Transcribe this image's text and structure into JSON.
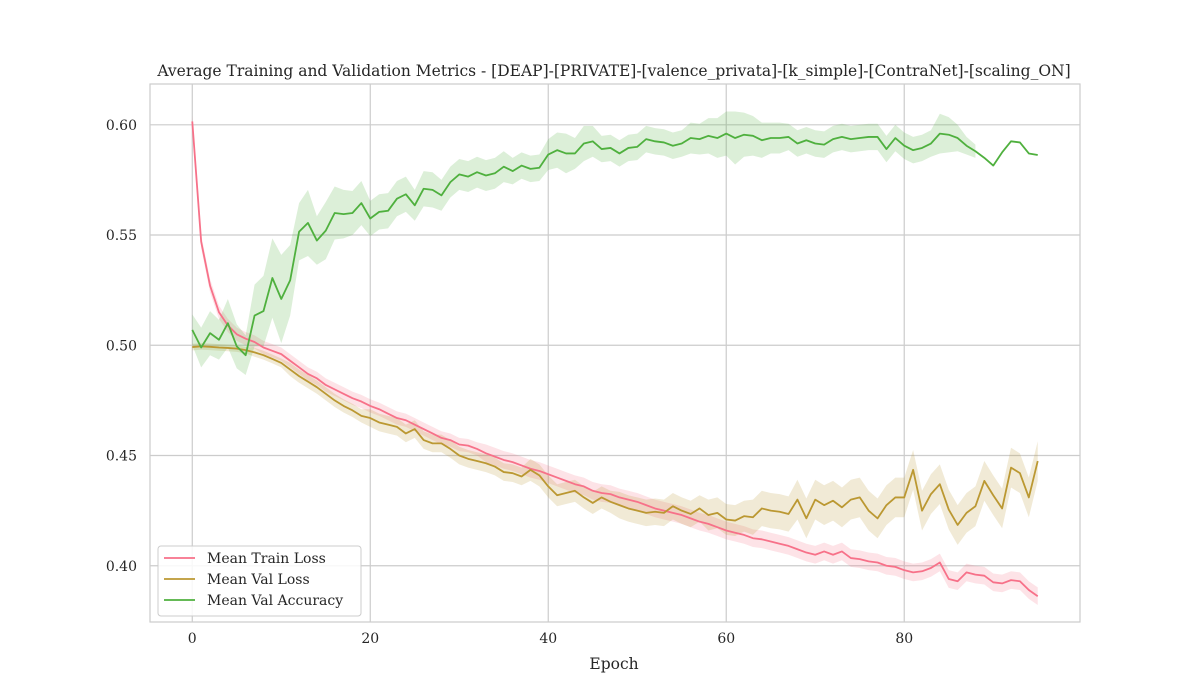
{
  "chart_data": {
    "type": "line",
    "title": "Average Training and Validation Metrics - [DEAP]-[PRIVATE]-[valence_privata]-[k_simple]-[ContraNet]-[scaling_ON]",
    "xlabel": "Epoch",
    "ylabel": "",
    "xlim": [
      -4.75,
      99.75
    ],
    "ylim": [
      0.3745,
      0.6185
    ],
    "xticks": [
      0,
      20,
      40,
      60,
      80
    ],
    "yticks": [
      0.4,
      0.45,
      0.5,
      0.55,
      0.6
    ],
    "xtick_labels": [
      "0",
      "20",
      "40",
      "60",
      "80"
    ],
    "ytick_labels": [
      "0.40",
      "0.45",
      "0.50",
      "0.55",
      "0.60"
    ],
    "grid": true,
    "legend_position": "lower-left",
    "x": [
      0,
      1,
      2,
      3,
      4,
      5,
      6,
      7,
      8,
      9,
      10,
      11,
      12,
      13,
      14,
      15,
      16,
      17,
      18,
      19,
      20,
      21,
      22,
      23,
      24,
      25,
      26,
      27,
      28,
      29,
      30,
      31,
      32,
      33,
      34,
      35,
      36,
      37,
      38,
      39,
      40,
      41,
      42,
      43,
      44,
      45,
      46,
      47,
      48,
      49,
      50,
      51,
      52,
      53,
      54,
      55,
      56,
      57,
      58,
      59,
      60,
      61,
      62,
      63,
      64,
      65,
      66,
      67,
      68,
      69,
      70,
      71,
      72,
      73,
      74,
      75,
      76,
      77,
      78,
      79,
      80,
      81,
      82,
      83,
      84,
      85,
      86,
      87,
      88,
      89,
      90,
      91,
      92,
      93,
      94,
      95
    ],
    "series": [
      {
        "name": "Mean Train Loss",
        "color": "#f77189",
        "values": [
          0.6015,
          0.547,
          0.527,
          0.515,
          0.509,
          0.505,
          0.503,
          0.5015,
          0.499,
          0.4975,
          0.496,
          0.493,
          0.49,
          0.487,
          0.485,
          0.482,
          0.48,
          0.478,
          0.476,
          0.4745,
          0.4725,
          0.471,
          0.469,
          0.467,
          0.466,
          0.464,
          0.462,
          0.46,
          0.458,
          0.457,
          0.455,
          0.4545,
          0.453,
          0.451,
          0.4495,
          0.448,
          0.447,
          0.4455,
          0.444,
          0.443,
          0.4415,
          0.44,
          0.4385,
          0.437,
          0.436,
          0.434,
          0.433,
          0.4325,
          0.431,
          0.43,
          0.429,
          0.4275,
          0.426,
          0.425,
          0.424,
          0.423,
          0.4215,
          0.42,
          0.419,
          0.4175,
          0.416,
          0.415,
          0.414,
          0.4125,
          0.412,
          0.411,
          0.41,
          0.409,
          0.4075,
          0.406,
          0.405,
          0.4065,
          0.405,
          0.4065,
          0.4035,
          0.403,
          0.402,
          0.4015,
          0.4,
          0.3995,
          0.398,
          0.397,
          0.3975,
          0.399,
          0.4015,
          0.394,
          0.393,
          0.397,
          0.396,
          0.3955,
          0.3925,
          0.392,
          0.3935,
          0.393,
          0.389,
          0.3862
        ],
        "band": [
          0.003,
          0.003,
          0.003,
          0.003,
          0.003,
          0.003,
          0.003,
          0.003,
          0.003,
          0.003,
          0.003,
          0.003,
          0.003,
          0.003,
          0.003,
          0.003,
          0.003,
          0.003,
          0.003,
          0.003,
          0.003,
          0.003,
          0.003,
          0.003,
          0.003,
          0.003,
          0.003,
          0.003,
          0.003,
          0.003,
          0.003,
          0.003,
          0.003,
          0.004,
          0.004,
          0.004,
          0.004,
          0.004,
          0.004,
          0.004,
          0.004,
          0.004,
          0.004,
          0.004,
          0.004,
          0.004,
          0.004,
          0.004,
          0.004,
          0.004,
          0.004,
          0.004,
          0.004,
          0.004,
          0.004,
          0.004,
          0.004,
          0.004,
          0.004,
          0.004,
          0.004,
          0.004,
          0.004,
          0.004,
          0.004,
          0.004,
          0.004,
          0.004,
          0.004,
          0.004,
          0.004,
          0.004,
          0.004,
          0.004,
          0.004,
          0.004,
          0.004,
          0.004,
          0.004,
          0.004,
          0.004,
          0.004,
          0.004,
          0.004,
          0.004,
          0.004,
          0.004,
          0.004,
          0.004,
          0.004,
          0.004,
          0.004,
          0.004,
          0.004,
          0.004,
          0.004
        ]
      },
      {
        "name": "Mean Val Loss",
        "color": "#bb9832",
        "values": [
          0.4992,
          0.4995,
          0.4993,
          0.499,
          0.4988,
          0.4985,
          0.4978,
          0.4968,
          0.4955,
          0.4938,
          0.492,
          0.489,
          0.486,
          0.4835,
          0.481,
          0.478,
          0.475,
          0.4725,
          0.4705,
          0.468,
          0.467,
          0.465,
          0.464,
          0.463,
          0.46,
          0.462,
          0.457,
          0.4555,
          0.4555,
          0.453,
          0.45,
          0.4485,
          0.4475,
          0.4465,
          0.445,
          0.4425,
          0.442,
          0.4405,
          0.4435,
          0.441,
          0.436,
          0.432,
          0.433,
          0.434,
          0.431,
          0.4285,
          0.431,
          0.429,
          0.4275,
          0.426,
          0.425,
          0.424,
          0.4245,
          0.424,
          0.427,
          0.425,
          0.4235,
          0.426,
          0.423,
          0.424,
          0.421,
          0.4205,
          0.4225,
          0.422,
          0.426,
          0.425,
          0.4245,
          0.4235,
          0.43,
          0.4215,
          0.43,
          0.4275,
          0.4295,
          0.4265,
          0.43,
          0.431,
          0.425,
          0.4215,
          0.4275,
          0.431,
          0.431,
          0.4435,
          0.425,
          0.4325,
          0.437,
          0.4255,
          0.4185,
          0.424,
          0.427,
          0.4385,
          0.432,
          0.426,
          0.4445,
          0.442,
          0.431,
          0.4475
        ],
        "band": [
          0.0015,
          0.0015,
          0.0015,
          0.0015,
          0.0015,
          0.0015,
          0.0015,
          0.002,
          0.002,
          0.002,
          0.002,
          0.003,
          0.003,
          0.003,
          0.003,
          0.003,
          0.003,
          0.003,
          0.003,
          0.003,
          0.004,
          0.004,
          0.004,
          0.004,
          0.004,
          0.004,
          0.004,
          0.004,
          0.004,
          0.004,
          0.004,
          0.004,
          0.004,
          0.004,
          0.004,
          0.004,
          0.004,
          0.004,
          0.005,
          0.005,
          0.005,
          0.005,
          0.005,
          0.005,
          0.005,
          0.005,
          0.005,
          0.005,
          0.006,
          0.006,
          0.006,
          0.006,
          0.006,
          0.006,
          0.006,
          0.006,
          0.006,
          0.006,
          0.007,
          0.007,
          0.007,
          0.007,
          0.007,
          0.008,
          0.008,
          0.008,
          0.008,
          0.008,
          0.009,
          0.009,
          0.009,
          0.009,
          0.009,
          0.009,
          0.009,
          0.009,
          0.009,
          0.009,
          0.009,
          0.009,
          0.009,
          0.009,
          0.009,
          0.009,
          0.009,
          0.009,
          0.009,
          0.009,
          0.009,
          0.009,
          0.009,
          0.009,
          0.009,
          0.009,
          0.009,
          0.009
        ]
      },
      {
        "name": "Mean Val Accuracy",
        "color": "#4fb03e",
        "values": [
          0.507,
          0.499,
          0.5055,
          0.5025,
          0.51,
          0.4995,
          0.4955,
          0.5135,
          0.5155,
          0.5305,
          0.521,
          0.5295,
          0.5515,
          0.5555,
          0.5475,
          0.552,
          0.56,
          0.5595,
          0.56,
          0.5645,
          0.5575,
          0.5605,
          0.561,
          0.5665,
          0.5685,
          0.5635,
          0.571,
          0.5705,
          0.568,
          0.574,
          0.5775,
          0.5765,
          0.5785,
          0.577,
          0.578,
          0.581,
          0.579,
          0.5815,
          0.58,
          0.5805,
          0.5865,
          0.5885,
          0.587,
          0.587,
          0.5915,
          0.5925,
          0.589,
          0.5895,
          0.587,
          0.5895,
          0.59,
          0.5935,
          0.5925,
          0.592,
          0.5905,
          0.5915,
          0.594,
          0.5935,
          0.595,
          0.594,
          0.596,
          0.594,
          0.5955,
          0.595,
          0.593,
          0.594,
          0.594,
          0.5945,
          0.5915,
          0.593,
          0.5915,
          0.591,
          0.5935,
          0.5945,
          0.5935,
          0.594,
          0.5945,
          0.5945,
          0.589,
          0.594,
          0.5905,
          0.5885,
          0.5895,
          0.5915,
          0.596,
          0.5955,
          0.594,
          0.5905,
          0.588,
          0.585,
          0.5815,
          0.5875,
          0.5925,
          0.592,
          0.587,
          0.5863
        ],
        "band": [
          0.007,
          0.009,
          0.01,
          0.009,
          0.011,
          0.01,
          0.009,
          0.014,
          0.016,
          0.018,
          0.02,
          0.016,
          0.013,
          0.015,
          0.011,
          0.013,
          0.012,
          0.011,
          0.01,
          0.01,
          0.008,
          0.008,
          0.008,
          0.008,
          0.008,
          0.007,
          0.008,
          0.008,
          0.007,
          0.007,
          0.007,
          0.007,
          0.007,
          0.007,
          0.007,
          0.007,
          0.006,
          0.006,
          0.006,
          0.006,
          0.007,
          0.008,
          0.009,
          0.007,
          0.008,
          0.007,
          0.006,
          0.006,
          0.006,
          0.006,
          0.006,
          0.006,
          0.006,
          0.006,
          0.006,
          0.006,
          0.007,
          0.007,
          0.008,
          0.009,
          0.01,
          0.012,
          0.01,
          0.009,
          0.008,
          0.007,
          0.007,
          0.006,
          0.006,
          0.006,
          0.006,
          0.006,
          0.006,
          0.006,
          0.006,
          0.006,
          0.006,
          0.006,
          0.006,
          0.006,
          0.006,
          0.006,
          0.006,
          0.006,
          0.009,
          0.008,
          0.006,
          0.004,
          0.003,
          0.003,
          0.003,
          0.003,
          0.002,
          0.002,
          0.002,
          0.002
        ],
        "band_end_index": 88
      }
    ]
  }
}
